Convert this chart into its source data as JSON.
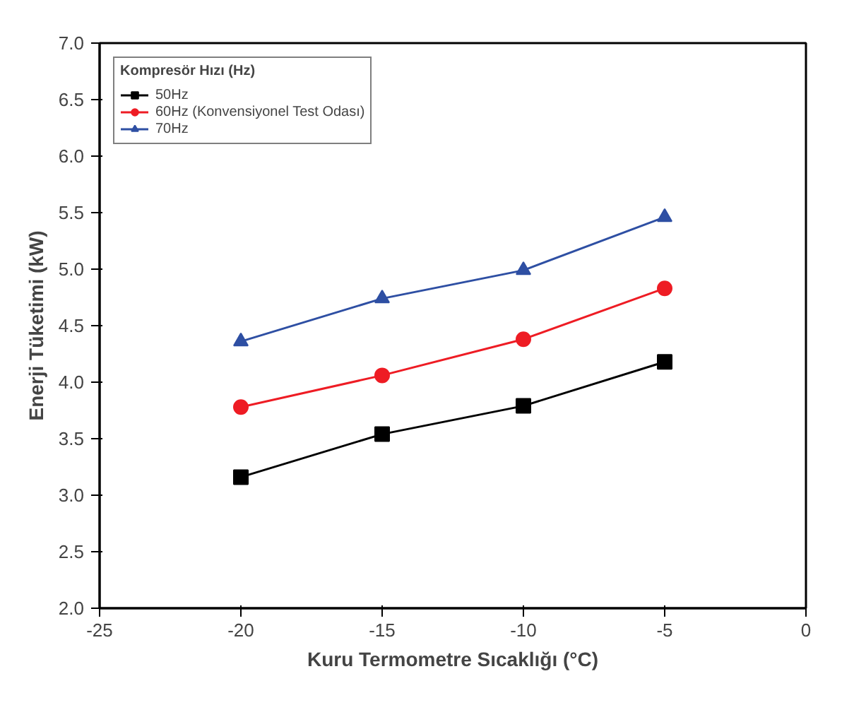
{
  "chart_data": {
    "type": "line",
    "xlabel": "Kuru Termometre Sıcaklığı (°C)",
    "ylabel": "Enerji Tüketimi (kW)",
    "legend_title": "Kompresör Hızı (Hz)",
    "x": [
      -20,
      -15,
      -10,
      -5
    ],
    "series": [
      {
        "name": "50Hz",
        "color": "#000000",
        "marker": "square",
        "values": [
          3.16,
          3.54,
          3.79,
          4.18
        ]
      },
      {
        "name": "60Hz (Konvensiyonel Test Odası)",
        "color": "#ee1c24",
        "marker": "circle",
        "values": [
          3.78,
          4.06,
          4.38,
          4.83
        ]
      },
      {
        "name": "70Hz",
        "color": "#2e4fa3",
        "marker": "triangle",
        "values": [
          4.36,
          4.74,
          4.99,
          5.46
        ]
      }
    ],
    "xlim": [
      -25,
      0
    ],
    "xticks": [
      -25,
      -20,
      -15,
      -10,
      -5,
      0
    ],
    "ylim": [
      2.0,
      7.0
    ],
    "yticks": [
      {
        "value": 2.0,
        "label": "2.0"
      },
      {
        "value": 2.5,
        "label": "2.5"
      },
      {
        "value": 3.0,
        "label": "3.0"
      },
      {
        "value": 3.5,
        "label": "3.5"
      },
      {
        "value": 4.0,
        "label": "4.0"
      },
      {
        "value": 4.5,
        "label": "4.5"
      },
      {
        "value": 5.0,
        "label": "5.0"
      },
      {
        "value": 5.5,
        "label": "5.5"
      },
      {
        "value": 6.0,
        "label": "6.0"
      },
      {
        "value": 6.5,
        "label": "6.5"
      },
      {
        "value": 7.0,
        "label": "7.0"
      }
    ],
    "grid": false,
    "legend": "top left",
    "line_style": "solid"
  }
}
